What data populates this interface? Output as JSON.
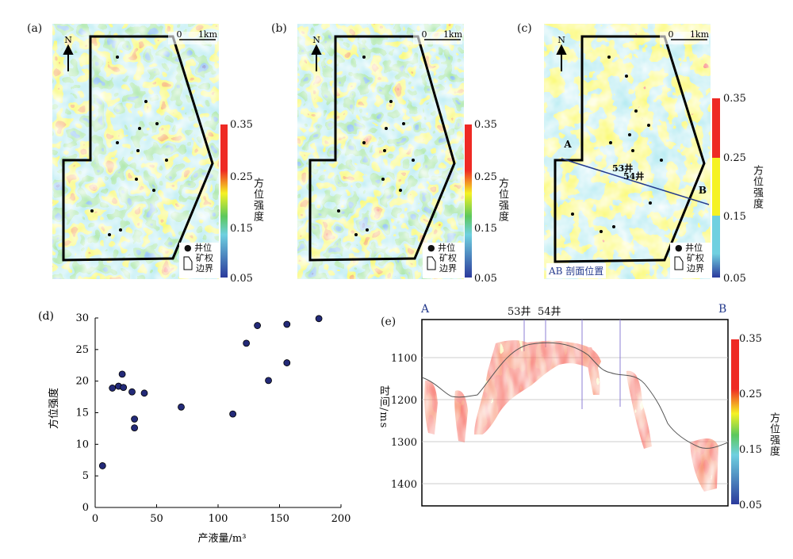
{
  "panels": {
    "a": {
      "label": "(a)",
      "scale_zero": "0",
      "scale_km": "1km",
      "north": "N",
      "colorbar_title": "方位强度",
      "colorbar_ticks": [
        "0.35",
        "0.25",
        "0.15",
        "0.05"
      ],
      "legend_well": "井位",
      "legend_boundary": [
        "矿权",
        "边界"
      ]
    },
    "b": {
      "label": "(b)",
      "scale_zero": "0",
      "scale_km": "1km",
      "north": "N",
      "colorbar_title": "方位强度",
      "colorbar_ticks": [
        "0.35",
        "0.25",
        "0.15",
        "0.05"
      ],
      "legend_well": "井位",
      "legend_boundary": [
        "矿权",
        "边界"
      ]
    },
    "c": {
      "label": "(c)",
      "scale_zero": "0",
      "scale_km": "1km",
      "north": "N",
      "colorbar_title": "方位强度",
      "colorbar_ticks": [
        "0.35",
        "0.25",
        "0.15",
        "0.05"
      ],
      "legend_well": "井位",
      "legend_boundary": [
        "矿权",
        "边界"
      ],
      "profile_note": "AB 剖面位置",
      "point_a": "A",
      "point_b": "B",
      "well_53": "53井",
      "well_54": "54井"
    },
    "e": {
      "label": "(e)",
      "point_a": "A",
      "point_b": "B",
      "well_53": "53井",
      "well_54": "54井",
      "ylabel": "时间/ms",
      "yticks": [
        "1100",
        "1200",
        "1300",
        "1400"
      ],
      "colorbar_title": "方位强度",
      "colorbar_ticks": [
        "0.35",
        "0.25",
        "0.15",
        "0.05"
      ]
    }
  },
  "colors": {
    "low": "#2b3a9c",
    "mid": "#6fd0e0",
    "green": "#5cc85c",
    "yellow": "#f5f224",
    "high": "#ee2a24",
    "point_fill": "#232a78"
  },
  "chart_data": [
    {
      "type": "scatter",
      "panel": "(d)",
      "xlabel": "产液量/m³",
      "ylabel": "方位强度",
      "xlim": [
        0,
        200
      ],
      "ylim": [
        0,
        30
      ],
      "xticks": [
        0,
        50,
        100,
        150,
        200
      ],
      "yticks": [
        0,
        5,
        10,
        15,
        20,
        25,
        30
      ],
      "points": [
        {
          "x": 6,
          "y": 6.6
        },
        {
          "x": 14,
          "y": 18.9
        },
        {
          "x": 19,
          "y": 19.2
        },
        {
          "x": 22,
          "y": 21.1
        },
        {
          "x": 23,
          "y": 19.0
        },
        {
          "x": 30,
          "y": 18.3
        },
        {
          "x": 32,
          "y": 14.0
        },
        {
          "x": 32,
          "y": 12.6
        },
        {
          "x": 40,
          "y": 18.1
        },
        {
          "x": 70,
          "y": 15.9
        },
        {
          "x": 112,
          "y": 14.8
        },
        {
          "x": 123,
          "y": 26.0
        },
        {
          "x": 132,
          "y": 28.8
        },
        {
          "x": 141,
          "y": 20.1
        },
        {
          "x": 156,
          "y": 29.0
        },
        {
          "x": 156,
          "y": 22.9
        },
        {
          "x": 182,
          "y": 29.9
        }
      ]
    }
  ]
}
